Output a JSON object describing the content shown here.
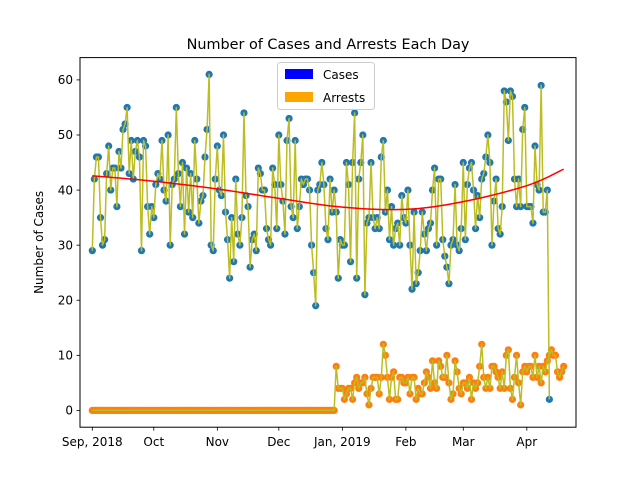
{
  "chart_data": {
    "type": "scatter",
    "title": "Number of Cases and Arrests Each Day",
    "xlabel": "",
    "ylabel": "Number of Cases",
    "x_start": "2018-09-01",
    "x_end": "2019-04-19",
    "xlim": [
      "2018-08-26",
      "2019-04-25"
    ],
    "ylim": [
      -3.05,
      64.05
    ],
    "yticks": [
      0,
      10,
      20,
      30,
      40,
      50,
      60
    ],
    "xticks": [
      {
        "date": "2018-09-01",
        "label": "Sep, 2018"
      },
      {
        "date": "2018-10-01",
        "label": "Oct"
      },
      {
        "date": "2018-11-01",
        "label": "Nov"
      },
      {
        "date": "2018-12-01",
        "label": "Dec"
      },
      {
        "date": "2019-01-01",
        "label": "Jan, 2019"
      },
      {
        "date": "2019-02-01",
        "label": "Feb"
      },
      {
        "date": "2019-03-01",
        "label": "Mar"
      },
      {
        "date": "2019-04-01",
        "label": "Apr"
      }
    ],
    "legend": {
      "position": "top-center",
      "entries": [
        {
          "label": "Cases",
          "color": "#0000ff"
        },
        {
          "label": "Arrests",
          "color": "#ffa500"
        }
      ]
    },
    "colors": {
      "cases_marker": "#1f77b4",
      "arrests_marker": "#ff7f0e",
      "connecting_line": "#bcbd22",
      "trend_line": "#ff0000"
    },
    "grid": false,
    "series": [
      {
        "name": "Cases",
        "values": [
          29,
          42,
          46,
          46,
          35,
          30,
          31,
          43,
          48,
          40,
          44,
          44,
          37,
          47,
          44,
          51,
          52,
          55,
          43,
          49,
          42,
          47,
          49,
          46,
          29,
          49,
          48,
          37,
          32,
          37,
          35,
          41,
          43,
          42,
          49,
          40,
          38,
          50,
          30,
          41,
          42,
          55,
          43,
          37,
          45,
          32,
          44,
          36,
          43,
          35,
          49,
          42,
          34,
          38,
          39,
          46,
          51,
          61,
          30,
          29,
          42,
          48,
          40,
          39,
          50,
          36,
          31,
          24,
          35,
          27,
          42,
          32,
          30,
          35,
          54,
          39,
          37,
          26,
          31,
          32,
          29,
          44,
          43,
          40,
          40,
          33,
          31,
          30,
          44,
          41,
          33,
          50,
          41,
          38,
          32,
          49,
          53,
          37,
          35,
          49,
          33,
          37,
          42,
          41,
          42,
          42,
          40,
          30,
          25,
          19,
          40,
          41,
          45,
          41,
          33,
          31,
          42,
          36,
          40,
          36,
          24,
          31,
          30,
          30,
          45,
          41,
          27,
          45,
          54,
          24,
          42,
          45,
          50,
          21,
          34,
          35,
          45,
          35,
          33,
          35,
          33,
          46,
          49,
          36,
          40,
          31,
          37,
          30,
          33,
          34,
          30,
          39,
          35,
          34,
          40,
          30,
          22,
          36,
          23,
          25,
          29,
          36,
          32,
          29,
          33,
          34,
          40,
          44,
          30,
          42,
          42,
          31,
          28,
          26,
          23,
          30,
          31,
          41,
          30,
          29,
          33,
          45,
          31,
          41,
          44,
          45,
          40,
          33,
          39,
          35,
          42,
          43,
          46,
          50,
          45,
          30,
          38,
          42,
          33,
          32,
          37,
          58,
          56,
          49,
          58,
          57,
          42,
          37,
          42,
          37,
          51,
          55,
          37,
          37,
          37,
          34,
          48,
          41,
          40,
          59,
          36,
          36,
          40,
          2
        ]
      },
      {
        "name": "Arrests",
        "values": [
          0,
          0,
          0,
          0,
          0,
          0,
          0,
          0,
          0,
          0,
          0,
          0,
          0,
          0,
          0,
          0,
          0,
          0,
          0,
          0,
          0,
          0,
          0,
          0,
          0,
          0,
          0,
          0,
          0,
          0,
          0,
          0,
          0,
          0,
          0,
          0,
          0,
          0,
          0,
          0,
          0,
          0,
          0,
          0,
          0,
          0,
          0,
          0,
          0,
          0,
          0,
          0,
          0,
          0,
          0,
          0,
          0,
          0,
          0,
          0,
          0,
          0,
          0,
          0,
          0,
          0,
          0,
          0,
          0,
          0,
          0,
          0,
          0,
          0,
          0,
          0,
          0,
          0,
          0,
          0,
          0,
          0,
          0,
          0,
          0,
          0,
          0,
          0,
          0,
          0,
          0,
          0,
          0,
          0,
          0,
          0,
          0,
          0,
          0,
          0,
          0,
          0,
          0,
          0,
          0,
          0,
          0,
          0,
          0,
          0,
          0,
          0,
          0,
          0,
          0,
          0,
          0,
          0,
          0,
          8,
          4,
          4,
          4,
          2,
          3,
          4,
          4,
          2,
          5,
          6,
          4,
          5,
          5,
          6,
          3,
          1,
          4,
          6,
          6,
          6,
          3,
          6,
          12,
          10,
          6,
          2,
          6,
          7,
          2,
          2,
          6,
          6,
          5,
          5,
          6,
          3,
          6,
          6,
          2,
          4,
          3,
          3,
          5,
          7,
          6,
          4,
          9,
          5,
          4,
          9,
          8,
          6,
          6,
          10,
          5,
          2,
          3,
          9,
          7,
          4,
          3,
          5,
          5,
          4,
          6,
          2,
          5,
          4,
          5,
          8,
          12,
          6,
          4,
          6,
          4,
          8,
          8,
          7,
          6,
          4,
          7,
          4,
          10,
          11,
          4,
          2,
          6,
          10,
          5,
          1,
          7,
          8,
          7,
          8,
          8,
          6,
          10,
          6,
          8,
          5,
          8,
          7,
          9,
          10,
          11,
          10,
          10,
          7,
          6,
          7,
          8
        ]
      },
      {
        "name": "Trend",
        "x": [
          "2018-09-01",
          "2018-10-01",
          "2018-11-01",
          "2018-12-01",
          "2019-01-01",
          "2019-02-01",
          "2019-03-01",
          "2019-04-01",
          "2019-04-19"
        ],
        "values": [
          42.6,
          41.6,
          40.2,
          38.5,
          36.9,
          36.5,
          37.9,
          40.8,
          43.8
        ]
      }
    ]
  }
}
